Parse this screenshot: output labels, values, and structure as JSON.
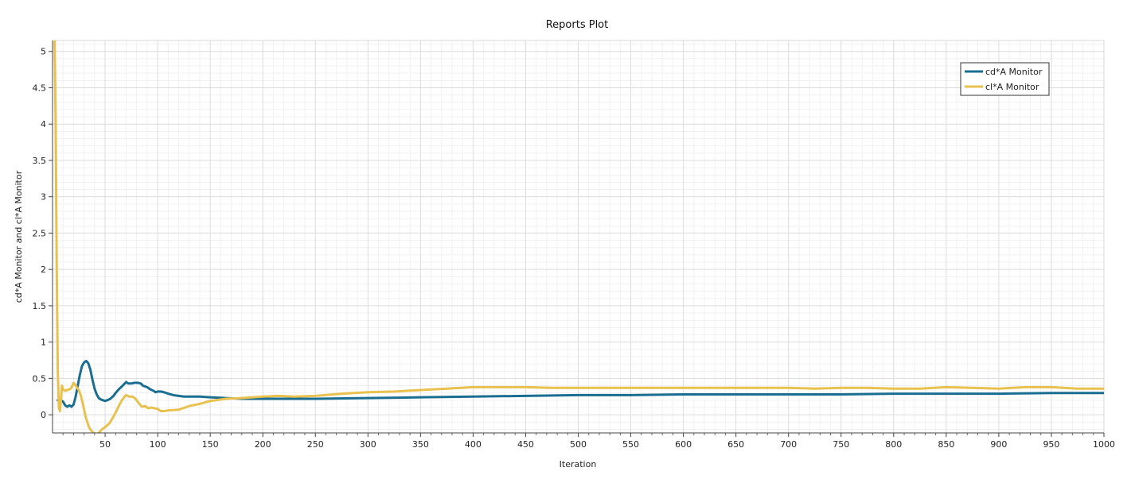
{
  "chart_data": {
    "type": "line",
    "title": "Reports Plot",
    "xlabel": "Iteration",
    "ylabel": "cd*A Monitor and cl*A Monitor",
    "xlim": [
      0,
      1000
    ],
    "ylim": [
      -0.25,
      5.15
    ],
    "x_ticks": [
      50,
      100,
      150,
      200,
      250,
      300,
      350,
      400,
      450,
      500,
      550,
      600,
      650,
      700,
      750,
      800,
      850,
      900,
      950,
      1000
    ],
    "x_tick_labels": [
      "50",
      "100",
      "150",
      "200",
      "250",
      "300",
      "350",
      "400",
      "450",
      "500",
      "550",
      "600",
      "650",
      "700",
      "750",
      "800",
      "850",
      "900",
      "950",
      "1000"
    ],
    "y_ticks": [
      0,
      0.5,
      1,
      1.5,
      2,
      2.5,
      3,
      3.5,
      4,
      4.5,
      5
    ],
    "y_tick_labels": [
      "0",
      "0.5",
      "1",
      "1.5",
      "2",
      "2.5",
      "3",
      "3.5",
      "4",
      "4.5",
      "5"
    ],
    "grid": true,
    "legend_position": "top-right",
    "series": [
      {
        "name": "cd*A Monitor",
        "color": "#1a6e91",
        "points": [
          [
            5,
            0.2
          ],
          [
            8,
            0.2
          ],
          [
            10,
            0.18
          ],
          [
            12,
            0.13
          ],
          [
            14,
            0.11
          ],
          [
            16,
            0.13
          ],
          [
            18,
            0.11
          ],
          [
            20,
            0.14
          ],
          [
            22,
            0.25
          ],
          [
            24,
            0.4
          ],
          [
            26,
            0.55
          ],
          [
            28,
            0.67
          ],
          [
            30,
            0.72
          ],
          [
            32,
            0.74
          ],
          [
            34,
            0.71
          ],
          [
            36,
            0.62
          ],
          [
            38,
            0.48
          ],
          [
            40,
            0.36
          ],
          [
            42,
            0.28
          ],
          [
            44,
            0.23
          ],
          [
            46,
            0.21
          ],
          [
            48,
            0.2
          ],
          [
            50,
            0.19
          ],
          [
            52,
            0.2
          ],
          [
            55,
            0.22
          ],
          [
            58,
            0.26
          ],
          [
            60,
            0.3
          ],
          [
            63,
            0.35
          ],
          [
            66,
            0.39
          ],
          [
            68,
            0.42
          ],
          [
            70,
            0.45
          ],
          [
            72,
            0.43
          ],
          [
            75,
            0.43
          ],
          [
            78,
            0.44
          ],
          [
            81,
            0.44
          ],
          [
            84,
            0.43
          ],
          [
            86,
            0.4
          ],
          [
            88,
            0.39
          ],
          [
            90,
            0.38
          ],
          [
            93,
            0.35
          ],
          [
            96,
            0.33
          ],
          [
            98,
            0.31
          ],
          [
            100,
            0.32
          ],
          [
            103,
            0.32
          ],
          [
            106,
            0.31
          ],
          [
            110,
            0.29
          ],
          [
            115,
            0.27
          ],
          [
            120,
            0.26
          ],
          [
            125,
            0.25
          ],
          [
            130,
            0.25
          ],
          [
            140,
            0.25
          ],
          [
            150,
            0.24
          ],
          [
            165,
            0.23
          ],
          [
            180,
            0.22
          ],
          [
            200,
            0.22
          ],
          [
            225,
            0.22
          ],
          [
            250,
            0.22
          ],
          [
            300,
            0.23
          ],
          [
            350,
            0.24
          ],
          [
            400,
            0.25
          ],
          [
            450,
            0.26
          ],
          [
            500,
            0.27
          ],
          [
            550,
            0.27
          ],
          [
            600,
            0.28
          ],
          [
            650,
            0.28
          ],
          [
            700,
            0.28
          ],
          [
            750,
            0.28
          ],
          [
            800,
            0.29
          ],
          [
            850,
            0.29
          ],
          [
            900,
            0.29
          ],
          [
            950,
            0.3
          ],
          [
            1000,
            0.3
          ]
        ]
      },
      {
        "name": "cl*A Monitor",
        "color": "#e8c14f",
        "points": [
          [
            2,
            5.15
          ],
          [
            3,
            4.0
          ],
          [
            4,
            2.0
          ],
          [
            5,
            0.6
          ],
          [
            6,
            0.1
          ],
          [
            7,
            0.05
          ],
          [
            8,
            0.2
          ],
          [
            9,
            0.4
          ],
          [
            10,
            0.35
          ],
          [
            12,
            0.33
          ],
          [
            14,
            0.34
          ],
          [
            16,
            0.35
          ],
          [
            18,
            0.37
          ],
          [
            20,
            0.44
          ],
          [
            22,
            0.4
          ],
          [
            25,
            0.34
          ],
          [
            27,
            0.26
          ],
          [
            29,
            0.14
          ],
          [
            31,
            0.0
          ],
          [
            33,
            -0.1
          ],
          [
            35,
            -0.18
          ],
          [
            37,
            -0.22
          ],
          [
            39,
            -0.25
          ],
          [
            41,
            -0.27
          ],
          [
            44,
            -0.25
          ],
          [
            47,
            -0.2
          ],
          [
            50,
            -0.17
          ],
          [
            54,
            -0.12
          ],
          [
            57,
            -0.05
          ],
          [
            60,
            0.03
          ],
          [
            63,
            0.12
          ],
          [
            66,
            0.2
          ],
          [
            68,
            0.24
          ],
          [
            70,
            0.27
          ],
          [
            73,
            0.25
          ],
          [
            76,
            0.25
          ],
          [
            79,
            0.22
          ],
          [
            82,
            0.16
          ],
          [
            85,
            0.11
          ],
          [
            88,
            0.12
          ],
          [
            91,
            0.09
          ],
          [
            94,
            0.1
          ],
          [
            97,
            0.09
          ],
          [
            100,
            0.08
          ],
          [
            103,
            0.05
          ],
          [
            106,
            0.05
          ],
          [
            110,
            0.06
          ],
          [
            120,
            0.07
          ],
          [
            130,
            0.12
          ],
          [
            140,
            0.15
          ],
          [
            150,
            0.19
          ],
          [
            165,
            0.22
          ],
          [
            180,
            0.23
          ],
          [
            200,
            0.25
          ],
          [
            215,
            0.26
          ],
          [
            230,
            0.25
          ],
          [
            250,
            0.26
          ],
          [
            275,
            0.29
          ],
          [
            300,
            0.31
          ],
          [
            325,
            0.32
          ],
          [
            350,
            0.34
          ],
          [
            375,
            0.36
          ],
          [
            400,
            0.38
          ],
          [
            425,
            0.38
          ],
          [
            450,
            0.38
          ],
          [
            475,
            0.37
          ],
          [
            500,
            0.37
          ],
          [
            525,
            0.37
          ],
          [
            550,
            0.37
          ],
          [
            575,
            0.37
          ],
          [
            600,
            0.37
          ],
          [
            625,
            0.37
          ],
          [
            650,
            0.37
          ],
          [
            675,
            0.37
          ],
          [
            700,
            0.37
          ],
          [
            725,
            0.36
          ],
          [
            750,
            0.37
          ],
          [
            775,
            0.37
          ],
          [
            800,
            0.36
          ],
          [
            825,
            0.36
          ],
          [
            850,
            0.38
          ],
          [
            875,
            0.37
          ],
          [
            900,
            0.36
          ],
          [
            925,
            0.38
          ],
          [
            950,
            0.38
          ],
          [
            975,
            0.36
          ],
          [
            1000,
            0.36
          ]
        ]
      }
    ]
  }
}
